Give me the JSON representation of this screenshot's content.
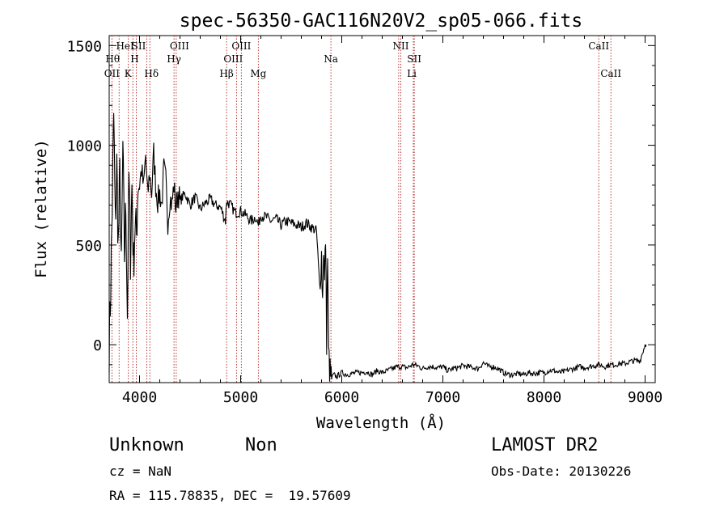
{
  "chart_data": {
    "type": "line",
    "title": "spec-56350-GAC116N20V2_sp05-066.fits",
    "xlabel": "Wavelength (Å)",
    "ylabel": "Flux (relative)",
    "xlim": [
      3700,
      9100
    ],
    "ylim": [
      -190,
      1550
    ],
    "xticks": [
      4000,
      5000,
      6000,
      7000,
      8000,
      9000
    ],
    "xtick_labels": [
      "4000",
      "5000",
      "6000",
      "7000",
      "8000",
      "9000"
    ],
    "yticks": [
      0,
      500,
      1000,
      1500
    ],
    "ytick_labels": [
      "0",
      "500",
      "1000",
      "1500"
    ],
    "grid": false,
    "line_color": "#000000",
    "marker_color": "#b22222",
    "spectrum": {
      "x": [
        3700,
        3715,
        3730,
        3745,
        3760,
        3775,
        3790,
        3805,
        3820,
        3835,
        3850,
        3865,
        3880,
        3895,
        3910,
        3925,
        3940,
        3955,
        3970,
        3985,
        4000,
        4020,
        4040,
        4060,
        4080,
        4100,
        4120,
        4140,
        4160,
        4180,
        4200,
        4220,
        4240,
        4260,
        4280,
        4300,
        4320,
        4340,
        4360,
        4380,
        4400,
        4450,
        4500,
        4550,
        4600,
        4650,
        4700,
        4750,
        4800,
        4850,
        4861,
        4900,
        4950,
        5000,
        5050,
        5100,
        5150,
        5175,
        5200,
        5250,
        5300,
        5350,
        5400,
        5450,
        5500,
        5550,
        5600,
        5650,
        5700,
        5750,
        5780,
        5800,
        5810,
        5820,
        5830,
        5840,
        5850,
        5860,
        5870,
        5880,
        5890,
        5900,
        5920,
        5950,
        6000,
        6050,
        6100,
        6150,
        6200,
        6250,
        6300,
        6350,
        6400,
        6450,
        6500,
        6550,
        6600,
        6650,
        6700,
        6750,
        6800,
        6850,
        6900,
        6950,
        7000,
        7050,
        7100,
        7150,
        7200,
        7250,
        7300,
        7350,
        7400,
        7450,
        7500,
        7550,
        7600,
        7650,
        7700,
        7750,
        7800,
        7850,
        7900,
        7950,
        8000,
        8050,
        8100,
        8150,
        8200,
        8250,
        8300,
        8350,
        8400,
        8450,
        8500,
        8550,
        8600,
        8650,
        8700,
        8750,
        8800,
        8850,
        8900,
        8950,
        9000,
        9010
      ],
      "y": [
        0,
        300,
        700,
        1150,
        600,
        900,
        500,
        850,
        350,
        1000,
        450,
        700,
        150,
        850,
        450,
        800,
        400,
        600,
        550,
        820,
        800,
        880,
        780,
        950,
        740,
        860,
        760,
        960,
        800,
        720,
        760,
        700,
        880,
        820,
        620,
        740,
        700,
        800,
        680,
        770,
        720,
        760,
        700,
        740,
        680,
        710,
        730,
        700,
        690,
        620,
        720,
        700,
        660,
        670,
        650,
        620,
        640,
        600,
        650,
        640,
        620,
        630,
        600,
        620,
        610,
        600,
        590,
        610,
        590,
        570,
        300,
        450,
        220,
        500,
        300,
        550,
        30,
        450,
        -40,
        -130,
        -160,
        -170,
        -150,
        -160,
        -140,
        -150,
        -145,
        -140,
        -140,
        -135,
        -150,
        -130,
        -140,
        -130,
        -120,
        -110,
        -110,
        -115,
        -100,
        -105,
        -120,
        -110,
        -110,
        -115,
        -110,
        -130,
        -120,
        -115,
        -105,
        -110,
        -115,
        -120,
        -90,
        -110,
        -110,
        -120,
        -140,
        -150,
        -150,
        -145,
        -150,
        -140,
        -145,
        -140,
        -140,
        -130,
        -130,
        -140,
        -135,
        -125,
        -120,
        -110,
        -115,
        -110,
        -105,
        -100,
        -110,
        -100,
        -100,
        -95,
        -95,
        -85,
        -80,
        -80,
        0,
        0
      ]
    },
    "lines": [
      {
        "label": "OII",
        "wl": 3727,
        "row": 3,
        "shift": 0
      },
      {
        "label": "Hθ",
        "wl": 3798,
        "row": 2,
        "shift": -8
      },
      {
        "label": "HeI",
        "wl": 3889,
        "row": 1,
        "shift": -4
      },
      {
        "label": "K",
        "wl": 3934,
        "row": 3,
        "shift": -6
      },
      {
        "label": "H",
        "wl": 3968,
        "row": 2,
        "shift": -2
      },
      {
        "label": "SII",
        "wl": 4072,
        "row": 1,
        "shift": -10
      },
      {
        "label": "Hδ",
        "wl": 4102,
        "row": 3,
        "shift": 2
      },
      {
        "label": "OIII",
        "wl": 4363,
        "row": 1,
        "shift": 4
      },
      {
        "label": "Hγ",
        "wl": 4341,
        "row": 2,
        "shift": 0
      },
      {
        "label": "Hβ",
        "wl": 4861,
        "row": 3,
        "shift": 0
      },
      {
        "label": "OIII",
        "wl": 4959,
        "row": 2,
        "shift": -4
      },
      {
        "label": "OIII",
        "wl": 5007,
        "row": 1,
        "shift": 0
      },
      {
        "label": "Mg",
        "wl": 5175,
        "row": 3,
        "shift": 0
      },
      {
        "label": "Na",
        "wl": 5893,
        "row": 2,
        "shift": 0
      },
      {
        "label": "NII",
        "wl": 6584,
        "row": 1,
        "shift": 0
      },
      {
        "label": "SII",
        "wl": 6717,
        "row": 2,
        "shift": 0
      },
      {
        "label": "Li",
        "wl": 6708,
        "row": 3,
        "shift": -2
      },
      {
        "label": "CaII",
        "wl": 8542,
        "row": 1,
        "shift": 0
      },
      {
        "label": "CaII",
        "wl": 8662,
        "row": 3,
        "shift": 0
      },
      {
        "label": "",
        "wl": 6563,
        "row": 0,
        "shift": 0
      }
    ]
  },
  "info": {
    "object_class": "Unknown",
    "subclass": "Non",
    "survey": "LAMOST DR2",
    "redshift": "cz = NaN",
    "obs_date": "Obs-Date: 20130226",
    "coords": "RA = 115.78835, DEC =  19.57609"
  }
}
